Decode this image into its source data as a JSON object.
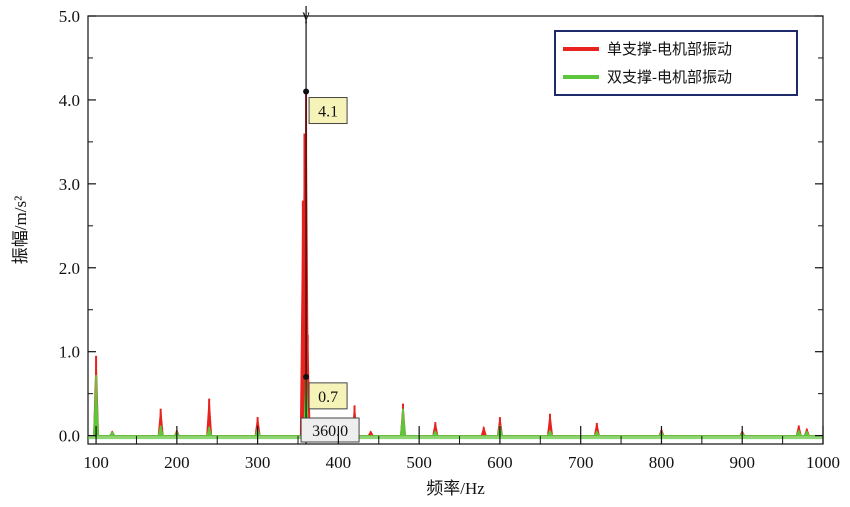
{
  "chart_data": {
    "type": "area",
    "xlabel": "频率/Hz",
    "ylabel": "振幅/m/s²",
    "xlim": [
      90,
      1000
    ],
    "ylim": [
      -0.1,
      5.0
    ],
    "x_ticks": [
      "100",
      "200",
      "300",
      "400",
      "500",
      "600",
      "700",
      "800",
      "900",
      "1000"
    ],
    "y_ticks": [
      "0.0",
      "1.0",
      "2.0",
      "3.0",
      "4.0",
      "5.0"
    ],
    "grid": false,
    "legend_position": "top-right",
    "series": [
      {
        "name": "单支撑-电机部振动",
        "color": "#e8231f",
        "points": [
          [
            100,
            0.95
          ],
          [
            120,
            0.05
          ],
          [
            180,
            0.32
          ],
          [
            200,
            0.06
          ],
          [
            240,
            0.44
          ],
          [
            300,
            0.22
          ],
          [
            356,
            2.8
          ],
          [
            358,
            3.6
          ],
          [
            360,
            4.1
          ],
          [
            362,
            1.2
          ],
          [
            420,
            0.36
          ],
          [
            440,
            0.05
          ],
          [
            480,
            0.38
          ],
          [
            520,
            0.16
          ],
          [
            580,
            0.1
          ],
          [
            600,
            0.22
          ],
          [
            662,
            0.26
          ],
          [
            720,
            0.15
          ],
          [
            800,
            0.07
          ],
          [
            900,
            0.05
          ],
          [
            970,
            0.12
          ],
          [
            980,
            0.08
          ]
        ]
      },
      {
        "name": "双支撑-电机部振动",
        "color": "#5cc73a",
        "points": [
          [
            100,
            0.72
          ],
          [
            120,
            0.04
          ],
          [
            180,
            0.12
          ],
          [
            200,
            0.04
          ],
          [
            240,
            0.1
          ],
          [
            300,
            0.08
          ],
          [
            360,
            0.7
          ],
          [
            420,
            0.05
          ],
          [
            480,
            0.32
          ],
          [
            520,
            0.05
          ],
          [
            600,
            0.12
          ],
          [
            662,
            0.06
          ],
          [
            720,
            0.05
          ],
          [
            800,
            0.04
          ],
          [
            900,
            0.03
          ],
          [
            970,
            0.06
          ],
          [
            980,
            0.05
          ]
        ]
      }
    ],
    "cursor": {
      "x_label": "360.0",
      "markers": [
        "4.1",
        "0.7"
      ],
      "symbol": "γ"
    },
    "background_color": "#ffffff"
  }
}
